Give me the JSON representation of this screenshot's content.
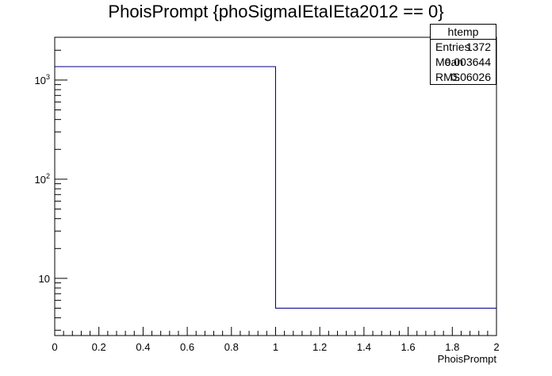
{
  "chart_data": {
    "type": "histogram",
    "title": "PhoisPrompt {phoSigmaIEtaIEta2012 == 0}",
    "xlabel": "PhoisPrompt",
    "ylabel": "",
    "xlim": [
      0,
      2
    ],
    "ylim": [
      2.65,
      2700
    ],
    "yscale": "log",
    "grid": false,
    "line_color": "#000080",
    "bins": [
      {
        "x0": 0,
        "x1": 1,
        "value": 1367
      },
      {
        "x0": 1,
        "x1": 2,
        "value": 5
      }
    ],
    "x_ticks": [
      "0",
      "0.2",
      "0.4",
      "0.6",
      "0.8",
      "1",
      "1.2",
      "1.4",
      "1.6",
      "1.8",
      "2"
    ],
    "y_ticks": [
      {
        "value": 10,
        "base": "10",
        "exp": ""
      },
      {
        "value": 100,
        "base": "10",
        "exp": "2"
      },
      {
        "value": 1000,
        "base": "10",
        "exp": "3"
      }
    ],
    "stats_box": {
      "name": "htemp",
      "rows": [
        {
          "label": "Entries",
          "value": "1372"
        },
        {
          "label": "Mean",
          "value": "0.003644"
        },
        {
          "label": "RMS",
          "value": "0.06026"
        }
      ]
    }
  }
}
